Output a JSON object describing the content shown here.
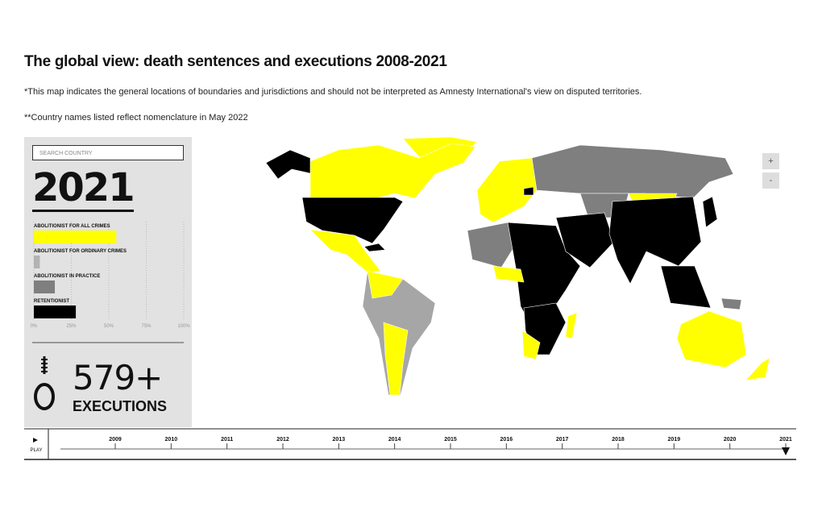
{
  "header": {
    "title": "The global view: death sentences and executions 2008-2021",
    "notes": [
      "*This map indicates the general locations of boundaries and jurisdictions and should not be interpreted as Amnesty International's view on disputed territories.",
      "**Country names listed reflect nomenclature in May 2022"
    ]
  },
  "map": {
    "zoom_in": "+",
    "zoom_out": "-"
  },
  "panel": {
    "search_placeholder": "SEARCH COUNTRY",
    "year": "2021",
    "chart": {
      "categories": [
        "ABOLITIONIST FOR ALL CRIMES",
        "ABOLITIONIST FOR ORDINARY CRIMES",
        "ABOLITIONIST IN PRACTICE",
        "RETENTIONIST"
      ],
      "values": [
        55,
        4,
        14,
        28
      ],
      "colors": [
        "#ffff00",
        "#b3b3b3",
        "#7f7f7f",
        "#000000"
      ],
      "xlim": [
        0,
        100
      ],
      "xticks": [
        {
          "value": 0,
          "label": "0%"
        },
        {
          "value": 25,
          "label": "25%"
        },
        {
          "value": 50,
          "label": "50%"
        },
        {
          "value": 75,
          "label": "75%"
        },
        {
          "value": 100,
          "label": "100%"
        }
      ]
    },
    "executions": "579+",
    "executions_label": "EXECUTIONS"
  },
  "timeline": {
    "play": "PLAY",
    "years": [
      2009,
      2010,
      2011,
      2012,
      2013,
      2014,
      2015,
      2016,
      2017,
      2018,
      2019,
      2020,
      2021
    ]
  }
}
